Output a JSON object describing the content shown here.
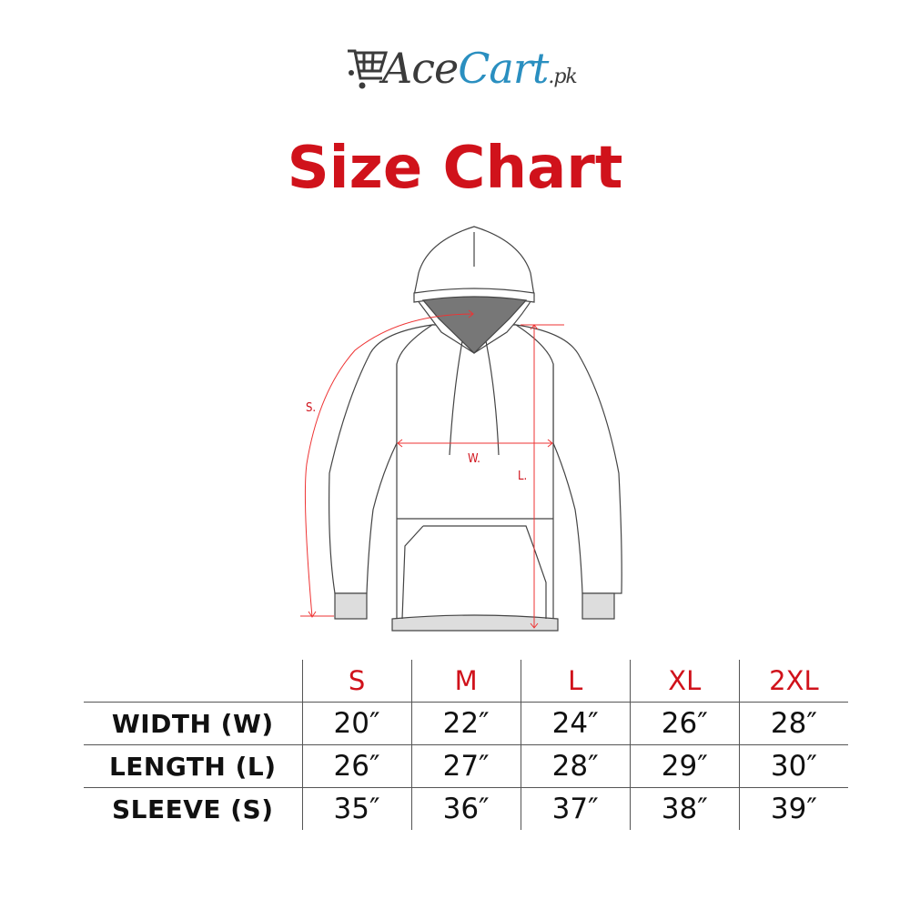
{
  "logo": {
    "brand_part1": "Ace",
    "brand_part2": "Cart",
    "domain": ".pk",
    "icon": "shopping-cart-icon",
    "colors": {
      "ace": "#3b3b3b",
      "cart": "#2a8fc0"
    }
  },
  "title": "Size Chart",
  "diagram": {
    "labels": {
      "sleeve": "S.",
      "width": "W.",
      "length": "L."
    },
    "accent_color": "#d0121b"
  },
  "table": {
    "sizes": [
      "S",
      "M",
      "L",
      "XL",
      "2XL"
    ],
    "rows": [
      {
        "label": "WIDTH (W)",
        "values": [
          "20″",
          "22″",
          "24″",
          "26″",
          "28″"
        ]
      },
      {
        "label": "LENGTH (L)",
        "values": [
          "26″",
          "27″",
          "28″",
          "29″",
          "30″"
        ]
      },
      {
        "label": "SLEEVE (S)",
        "values": [
          "35″",
          "36″",
          "37″",
          "38″",
          "39″"
        ]
      }
    ]
  }
}
